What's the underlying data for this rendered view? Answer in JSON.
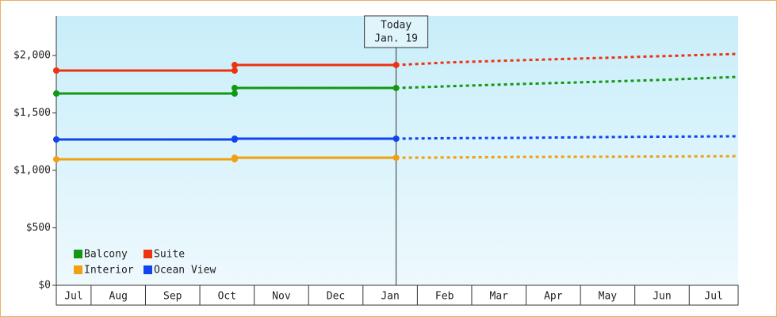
{
  "chart_data": {
    "type": "line",
    "categories": [
      "Jul",
      "Aug",
      "Sep",
      "Oct",
      "Nov",
      "Dec",
      "Jan",
      "Feb",
      "Mar",
      "Apr",
      "May",
      "Jun",
      "Jul"
    ],
    "x": [
      0.36,
      3.64,
      3.64,
      6.61,
      7.5,
      8.9,
      10.4,
      11.4,
      12.9
    ],
    "xlim": [
      0.36,
      12.9
    ],
    "xticks": [
      1,
      2,
      3,
      4,
      5,
      6,
      7,
      8,
      9,
      10,
      11,
      12
    ],
    "series": [
      {
        "name": "Balcony",
        "color": "#119911",
        "values": [
          1669,
          1669,
          1717,
          1717,
          1731,
          1752,
          1772,
          1786,
          1814
        ]
      },
      {
        "name": "Suite",
        "color": "#ee3311",
        "values": [
          1869,
          1869,
          1917,
          1917,
          1938,
          1959,
          1979,
          1993,
          2014
        ]
      },
      {
        "name": "Interior",
        "color": "#f0a010",
        "values": [
          1097,
          1097,
          1110,
          1110,
          1112,
          1117,
          1119,
          1121,
          1124
        ]
      },
      {
        "name": "Ocean View",
        "color": "#1144ee",
        "values": [
          1269,
          1269,
          1276,
          1276,
          1280,
          1283,
          1290,
          1293,
          1297
        ]
      }
    ],
    "today": {
      "label": [
        "Today",
        "Jan. 19"
      ],
      "x": 6.61
    },
    "ylim": [
      0,
      2345
    ],
    "yticks": [
      {
        "value": 0,
        "label": "$0"
      },
      {
        "value": 500,
        "label": "$500"
      },
      {
        "value": 1000,
        "label": "$1,000"
      },
      {
        "value": 1500,
        "label": "$1,500"
      },
      {
        "value": 2000,
        "label": "$2,000"
      }
    ],
    "legend": "lower left"
  }
}
